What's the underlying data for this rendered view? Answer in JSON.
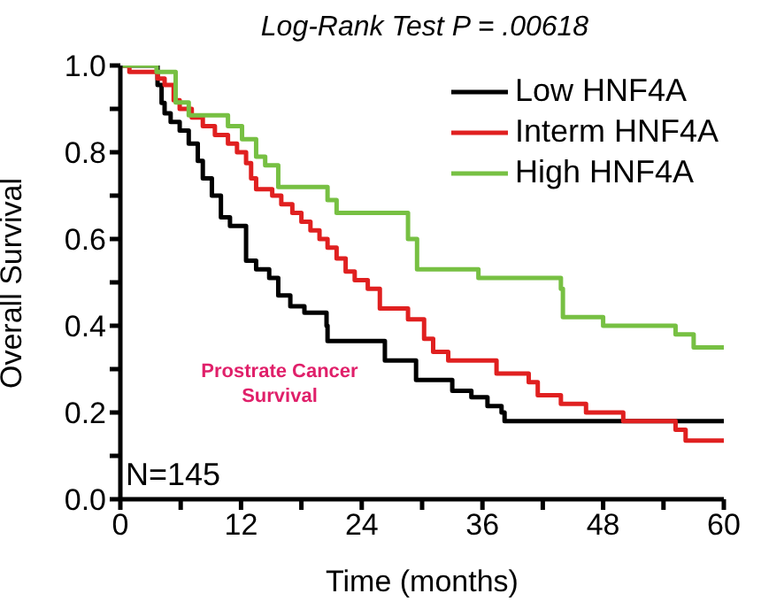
{
  "chart_data": {
    "type": "step",
    "title": "Log-Rank Test P = .00618",
    "xlabel": "Time (months)",
    "ylabel": "Overall Survival",
    "xlim": [
      0,
      60
    ],
    "ylim": [
      0,
      1
    ],
    "xticks": [
      0,
      {
        "value": 6,
        "label": null
      },
      12,
      {
        "value": 18,
        "label": null
      },
      24,
      {
        "value": 30,
        "label": null
      },
      36,
      {
        "value": 42,
        "label": null
      },
      48,
      {
        "value": 54,
        "label": null
      },
      60
    ],
    "yticks": [
      {
        "value": 0,
        "label": "0.0"
      },
      {
        "value": 0.1,
        "label": null
      },
      0.2,
      {
        "value": 0.3,
        "label": null
      },
      0.4,
      {
        "value": 0.5,
        "label": null
      },
      0.6,
      {
        "value": 0.7,
        "label": null
      },
      0.8,
      {
        "value": 0.9,
        "label": null
      },
      {
        "value": 1,
        "label": "1.0"
      }
    ],
    "legend": "top right",
    "marker": "none",
    "line_style": "solid",
    "annotations": [
      "Prostrate Cancer Survival",
      "N=145"
    ],
    "series": [
      {
        "name": "Low HNF4A",
        "color": "#000000",
        "x": [
          0,
          3.7,
          4.1,
          4.4,
          5,
          5.9,
          6.8,
          7.7,
          8.2,
          9.1,
          10,
          10.9,
          12.5,
          13.5,
          14.8,
          15.7,
          16.9,
          18.3,
          20.5,
          20.6,
          26.3,
          29.4,
          33,
          34.9,
          36.5,
          37.9,
          38.2,
          60
        ],
        "values": [
          1,
          0.955,
          0.914,
          0.89,
          0.87,
          0.85,
          0.82,
          0.78,
          0.74,
          0.7,
          0.65,
          0.63,
          0.55,
          0.53,
          0.51,
          0.47,
          0.445,
          0.43,
          0.4,
          0.365,
          0.32,
          0.275,
          0.25,
          0.235,
          0.215,
          0.2,
          0.18,
          0.18
        ]
      },
      {
        "name": "Interm HNF4A",
        "color": "#e02020",
        "x": [
          0,
          0.9,
          3.7,
          4.4,
          5.3,
          5.9,
          7.1,
          8.2,
          9.4,
          10.7,
          11.6,
          12.5,
          13,
          13.5,
          15.1,
          16,
          17.1,
          18,
          18.9,
          19.8,
          20.6,
          21.5,
          22.4,
          23.3,
          24.6,
          25.8,
          28.6,
          30.2,
          31.1,
          32.6,
          37.4,
          40.6,
          41.5,
          43.8,
          46.3,
          50,
          55.2,
          56.2,
          60
        ],
        "values": [
          1,
          0.985,
          0.97,
          0.955,
          0.92,
          0.9,
          0.88,
          0.86,
          0.84,
          0.82,
          0.8,
          0.775,
          0.74,
          0.715,
          0.7,
          0.68,
          0.66,
          0.64,
          0.62,
          0.6,
          0.58,
          0.555,
          0.525,
          0.505,
          0.485,
          0.44,
          0.415,
          0.37,
          0.34,
          0.32,
          0.29,
          0.27,
          0.24,
          0.22,
          0.2,
          0.18,
          0.16,
          0.135,
          0.135
        ]
      },
      {
        "name": "High HNF4A",
        "color": "#77c043",
        "x": [
          0,
          3.6,
          5.5,
          6.8,
          10.7,
          12.1,
          13.5,
          14.4,
          15.7,
          20.6,
          21.5,
          24,
          28.6,
          29.5,
          35.6,
          43.8,
          44,
          48,
          55.2,
          57,
          60
        ],
        "values": [
          1,
          0.985,
          0.915,
          0.885,
          0.86,
          0.83,
          0.79,
          0.77,
          0.72,
          0.69,
          0.66,
          0.66,
          0.6,
          0.53,
          0.51,
          0.485,
          0.42,
          0.4,
          0.38,
          0.35,
          0.35
        ]
      }
    ]
  }
}
